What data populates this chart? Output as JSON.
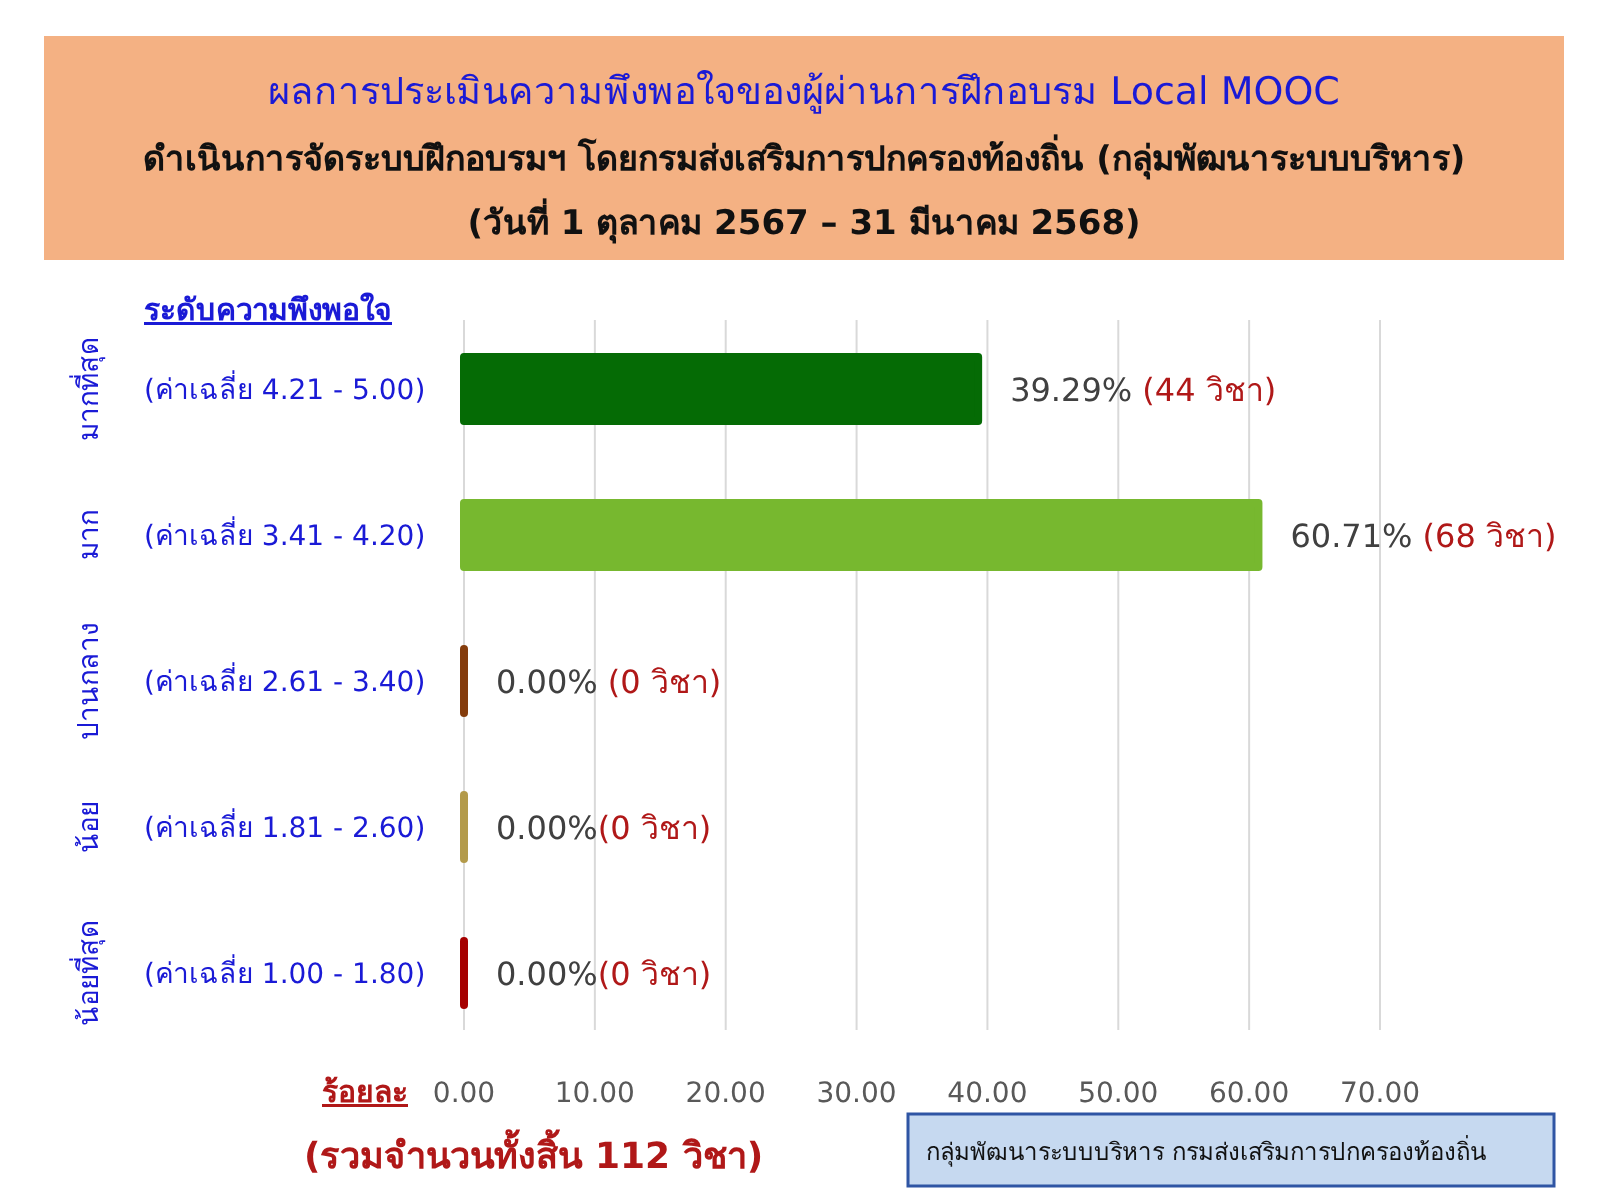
{
  "chart_data": {
    "type": "bar",
    "orientation": "horizontal",
    "title": "ผลการประเมินความพึงพอใจของผู้ผ่านการฝึกอบรม Local MOOC",
    "subtitle": "ดำเนินการจัดระบบฝึกอบรมฯ โดยกรมส่งเสริมการปกครองท้องถิ่น (กลุ่มพัฒนาระบบบริหาร)\n(วันที่ 1 ตุลาคม 2567 – 31 มีนาคม 2568)",
    "ylabel": "ระดับความพึงพอใจ",
    "xlabel": "ร้อยละ",
    "categories": [
      "มากที่สุด\n(ค่าเฉลี่ย 4.21 - 5.00)",
      "มาก\n(ค่าเฉลี่ย 3.41 - 4.20)",
      "ปานกลาง\n(ค่าเฉลี่ย 2.61 - 3.40)",
      "น้อย\n(ค่าเฉลี่ย 1.81 - 2.60)",
      "น้อยที่สุด\n(ค่าเฉลี่ย 1.00 - 1.80)"
    ],
    "values": [
      39.29,
      60.71,
      0,
      0,
      0
    ],
    "colors": [
      "#056b05",
      "#77b82f",
      "#843c0c",
      "#b39a4a",
      "#a50000"
    ],
    "value_labels": [
      "39.29% (44 วิชา)",
      "60.71% (68 วิชา)",
      "0.00% (0 วิชา)",
      "0.00%(0 วิชา)",
      "0.00%(0 วิชา)"
    ],
    "xlim": [
      0,
      70
    ],
    "xticks": [
      {
        "value": 0,
        "label": "0.00"
      },
      {
        "value": 10,
        "label": "10.00"
      },
      {
        "value": 20,
        "label": "20.00"
      },
      {
        "value": 30,
        "label": "30.00"
      },
      {
        "value": 40,
        "label": "40.00"
      },
      {
        "value": 50,
        "label": "50.00"
      },
      {
        "value": 60,
        "label": "60.00"
      },
      {
        "value": 70,
        "label": "70.00"
      }
    ],
    "grid": "x",
    "annotations": [
      "(รวมจำนวนทั้งสิ้น 112 วิชา)",
      "กลุ่มพัฒนาระบบบริหาร กรมส่งเสริมการปกครองท้องถิ่น"
    ]
  }
}
